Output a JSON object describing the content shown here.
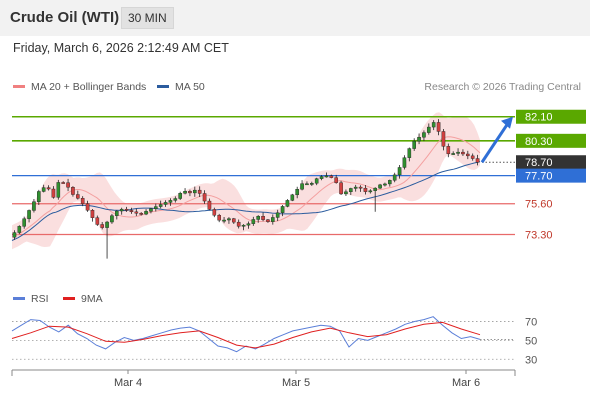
{
  "header": {
    "title": "Crude Oil (WTI)",
    "interval": "30 MIN"
  },
  "datetime": "Friday, March 6, 2026 2:12:49 AM CET",
  "legend": {
    "ma20_label": "MA 20 + Bollinger Bands",
    "ma20_color": "#f08080",
    "ma50_label": "MA 50",
    "ma50_color": "#2b5c9e"
  },
  "credit": "Research © 2026 Trading Central",
  "rsi_legend": {
    "rsi_label": "RSI",
    "rsi_color": "#5b7fd8",
    "ma9_label": "9MA",
    "ma9_color": "#e02020"
  },
  "colors": {
    "resistance": "#5aa800",
    "support": "#e86a6a",
    "pivot": "#2f6fd6",
    "current": "#333333",
    "bullish": "#2f8f2f",
    "bearish": "#d04040",
    "band_fill": "#fadcdc"
  },
  "chart_data": [
    {
      "type": "candlestick",
      "title": "Crude Oil (WTI)",
      "x_axis": [
        "Mar 4",
        "Mar 5",
        "Mar 6"
      ],
      "price_levels": [
        {
          "value": 82.1,
          "label": "82.10",
          "role": "resistance"
        },
        {
          "value": 80.3,
          "label": "80.30",
          "role": "resistance"
        },
        {
          "value": 78.7,
          "label": "78.70",
          "role": "current"
        },
        {
          "value": 77.7,
          "label": "77.70",
          "role": "pivot"
        },
        {
          "value": 75.6,
          "label": "75.60",
          "role": "support"
        },
        {
          "value": 73.3,
          "label": "73.30",
          "role": "support"
        }
      ],
      "ylim": [
        70.5,
        83.5
      ],
      "close_path": [
        {
          "x": 0.0,
          "y": 73.1
        },
        {
          "x": 0.015,
          "y": 73.6
        },
        {
          "x": 0.03,
          "y": 74.4
        },
        {
          "x": 0.05,
          "y": 75.6
        },
        {
          "x": 0.065,
          "y": 76.7
        },
        {
          "x": 0.08,
          "y": 76.9
        },
        {
          "x": 0.095,
          "y": 76.0
        },
        {
          "x": 0.105,
          "y": 77.3
        },
        {
          "x": 0.12,
          "y": 77.1
        },
        {
          "x": 0.135,
          "y": 76.3
        },
        {
          "x": 0.15,
          "y": 75.9
        },
        {
          "x": 0.165,
          "y": 75.2
        },
        {
          "x": 0.18,
          "y": 74.4
        },
        {
          "x": 0.195,
          "y": 73.7
        },
        {
          "x": 0.21,
          "y": 74.3
        },
        {
          "x": 0.225,
          "y": 75.0
        },
        {
          "x": 0.24,
          "y": 75.2
        },
        {
          "x": 0.26,
          "y": 75.0
        },
        {
          "x": 0.28,
          "y": 74.8
        },
        {
          "x": 0.3,
          "y": 75.2
        },
        {
          "x": 0.32,
          "y": 75.5
        },
        {
          "x": 0.34,
          "y": 75.8
        },
        {
          "x": 0.355,
          "y": 76.0
        },
        {
          "x": 0.37,
          "y": 76.6
        },
        {
          "x": 0.385,
          "y": 76.4
        },
        {
          "x": 0.4,
          "y": 76.7
        },
        {
          "x": 0.415,
          "y": 75.9
        },
        {
          "x": 0.43,
          "y": 75.0
        },
        {
          "x": 0.45,
          "y": 74.3
        },
        {
          "x": 0.47,
          "y": 74.5
        },
        {
          "x": 0.49,
          "y": 73.9
        },
        {
          "x": 0.51,
          "y": 74.1
        },
        {
          "x": 0.53,
          "y": 74.7
        },
        {
          "x": 0.55,
          "y": 74.2
        },
        {
          "x": 0.57,
          "y": 74.8
        },
        {
          "x": 0.59,
          "y": 75.7
        },
        {
          "x": 0.61,
          "y": 76.5
        },
        {
          "x": 0.625,
          "y": 77.1
        },
        {
          "x": 0.645,
          "y": 77.1
        },
        {
          "x": 0.66,
          "y": 77.6
        },
        {
          "x": 0.68,
          "y": 77.7
        },
        {
          "x": 0.695,
          "y": 77.4
        },
        {
          "x": 0.71,
          "y": 76.2
        },
        {
          "x": 0.725,
          "y": 76.7
        },
        {
          "x": 0.745,
          "y": 76.9
        },
        {
          "x": 0.76,
          "y": 76.5
        },
        {
          "x": 0.775,
          "y": 76.6
        },
        {
          "x": 0.79,
          "y": 77.0
        },
        {
          "x": 0.805,
          "y": 77.1
        },
        {
          "x": 0.82,
          "y": 77.6
        },
        {
          "x": 0.835,
          "y": 78.4
        },
        {
          "x": 0.85,
          "y": 79.5
        },
        {
          "x": 0.865,
          "y": 80.3
        },
        {
          "x": 0.88,
          "y": 80.7
        },
        {
          "x": 0.895,
          "y": 81.3
        },
        {
          "x": 0.91,
          "y": 81.8
        },
        {
          "x": 0.925,
          "y": 80.0
        },
        {
          "x": 0.94,
          "y": 79.2
        },
        {
          "x": 0.955,
          "y": 79.5
        },
        {
          "x": 0.97,
          "y": 79.3
        },
        {
          "x": 0.985,
          "y": 79.1
        },
        {
          "x": 1.0,
          "y": 78.7
        }
      ],
      "forecast_arrow": {
        "from": 78.7,
        "to": 82.1
      },
      "series": [
        {
          "name": "MA 20 + Bollinger Bands"
        },
        {
          "name": "MA 50"
        }
      ]
    },
    {
      "type": "line",
      "series": [
        {
          "name": "RSI"
        },
        {
          "name": "9MA"
        }
      ],
      "ylim": [
        25,
        80
      ],
      "y_ticks": [
        "70",
        "50",
        "30"
      ],
      "rsi": [
        {
          "x": 0.0,
          "y": 60
        },
        {
          "x": 0.02,
          "y": 66
        },
        {
          "x": 0.04,
          "y": 72
        },
        {
          "x": 0.06,
          "y": 71
        },
        {
          "x": 0.08,
          "y": 64
        },
        {
          "x": 0.1,
          "y": 59
        },
        {
          "x": 0.12,
          "y": 66
        },
        {
          "x": 0.14,
          "y": 57
        },
        {
          "x": 0.16,
          "y": 52
        },
        {
          "x": 0.18,
          "y": 45
        },
        {
          "x": 0.2,
          "y": 41
        },
        {
          "x": 0.22,
          "y": 48
        },
        {
          "x": 0.24,
          "y": 53
        },
        {
          "x": 0.26,
          "y": 50
        },
        {
          "x": 0.28,
          "y": 52
        },
        {
          "x": 0.3,
          "y": 55
        },
        {
          "x": 0.32,
          "y": 58
        },
        {
          "x": 0.34,
          "y": 61
        },
        {
          "x": 0.36,
          "y": 63
        },
        {
          "x": 0.38,
          "y": 64
        },
        {
          "x": 0.4,
          "y": 60
        },
        {
          "x": 0.42,
          "y": 52
        },
        {
          "x": 0.44,
          "y": 44
        },
        {
          "x": 0.46,
          "y": 42
        },
        {
          "x": 0.48,
          "y": 38
        },
        {
          "x": 0.5,
          "y": 44
        },
        {
          "x": 0.52,
          "y": 41
        },
        {
          "x": 0.54,
          "y": 46
        },
        {
          "x": 0.56,
          "y": 52
        },
        {
          "x": 0.58,
          "y": 56
        },
        {
          "x": 0.6,
          "y": 60
        },
        {
          "x": 0.62,
          "y": 62
        },
        {
          "x": 0.64,
          "y": 64
        },
        {
          "x": 0.66,
          "y": 66
        },
        {
          "x": 0.68,
          "y": 65
        },
        {
          "x": 0.7,
          "y": 60
        },
        {
          "x": 0.72,
          "y": 43
        },
        {
          "x": 0.74,
          "y": 52
        },
        {
          "x": 0.76,
          "y": 50
        },
        {
          "x": 0.78,
          "y": 54
        },
        {
          "x": 0.8,
          "y": 58
        },
        {
          "x": 0.82,
          "y": 62
        },
        {
          "x": 0.84,
          "y": 67
        },
        {
          "x": 0.86,
          "y": 70
        },
        {
          "x": 0.88,
          "y": 72
        },
        {
          "x": 0.9,
          "y": 75
        },
        {
          "x": 0.92,
          "y": 66
        },
        {
          "x": 0.94,
          "y": 58
        },
        {
          "x": 0.96,
          "y": 52
        },
        {
          "x": 0.98,
          "y": 54
        },
        {
          "x": 1.0,
          "y": 51
        }
      ],
      "ma9": [
        {
          "x": 0.0,
          "y": 52
        },
        {
          "x": 0.04,
          "y": 58
        },
        {
          "x": 0.08,
          "y": 65
        },
        {
          "x": 0.12,
          "y": 64
        },
        {
          "x": 0.16,
          "y": 57
        },
        {
          "x": 0.2,
          "y": 49
        },
        {
          "x": 0.24,
          "y": 48
        },
        {
          "x": 0.28,
          "y": 51
        },
        {
          "x": 0.32,
          "y": 55
        },
        {
          "x": 0.36,
          "y": 58
        },
        {
          "x": 0.4,
          "y": 60
        },
        {
          "x": 0.44,
          "y": 53
        },
        {
          "x": 0.48,
          "y": 45
        },
        {
          "x": 0.52,
          "y": 42
        },
        {
          "x": 0.56,
          "y": 46
        },
        {
          "x": 0.6,
          "y": 53
        },
        {
          "x": 0.64,
          "y": 59
        },
        {
          "x": 0.68,
          "y": 63
        },
        {
          "x": 0.72,
          "y": 58
        },
        {
          "x": 0.76,
          "y": 54
        },
        {
          "x": 0.8,
          "y": 56
        },
        {
          "x": 0.84,
          "y": 62
        },
        {
          "x": 0.88,
          "y": 67
        },
        {
          "x": 0.92,
          "y": 69
        },
        {
          "x": 0.96,
          "y": 62
        },
        {
          "x": 1.0,
          "y": 56
        }
      ]
    }
  ]
}
